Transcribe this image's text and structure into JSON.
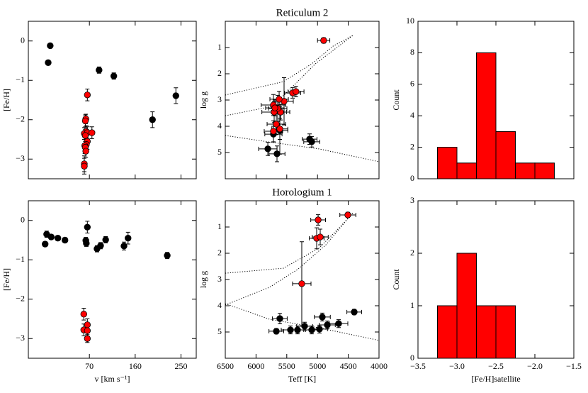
{
  "chart_data": [
    {
      "type": "scatter",
      "ylabel": "[Fe/H]",
      "xlim": [
        -50,
        280
      ],
      "ylim": [
        -3.5,
        0.5
      ],
      "xticks": [
        70,
        160,
        250
      ],
      "show_xticklabels": false,
      "yticks": [
        0,
        {
          "value": -1,
          "label": "−1"
        },
        {
          "value": -2,
          "label": "−2"
        },
        {
          "value": -3,
          "label": "−3"
        }
      ],
      "series": [
        {
          "color": "#000000",
          "x": [
            -11,
            -7,
            89,
            118,
            194,
            240
          ],
          "values": [
            -0.55,
            -0.12,
            -0.74,
            -0.89,
            -2.0,
            -1.39
          ],
          "yerr": [
            0.06,
            0.05,
            0.08,
            0.08,
            0.2,
            0.2
          ]
        },
        {
          "color": "#ff0000",
          "x": [
            66,
            63,
            62,
            64,
            60,
            66,
            75,
            62,
            66,
            64,
            61,
            62,
            63,
            60,
            60
          ],
          "values": [
            -1.37,
            -1.98,
            -2.03,
            -2.3,
            -2.35,
            -2.33,
            -2.33,
            -2.4,
            -2.55,
            -2.63,
            -2.66,
            -2.7,
            -2.8,
            -3.12,
            -3.18
          ],
          "yerr": [
            0.15,
            0.12,
            0.15,
            0.15,
            0.15,
            0.15,
            0.15,
            0.15,
            0.2,
            0.15,
            0.2,
            0.15,
            0.15,
            0.2,
            0.2
          ]
        }
      ]
    },
    {
      "type": "scatter",
      "title": "Reticulum 2",
      "ylabel": "log g",
      "xlim": [
        6500,
        4000
      ],
      "ylim": [
        6,
        0
      ],
      "xticks": [
        6500,
        6000,
        5500,
        5000,
        4500,
        4000
      ],
      "show_xticklabels": false,
      "yticks": [
        1,
        2,
        3,
        4,
        5
      ],
      "curves": [
        {
          "x": [
            6500,
            5555,
            5094,
            4749,
            4426
          ],
          "y": [
            2.81,
            2.3,
            1.62,
            0.95,
            0.54
          ]
        },
        {
          "x": [
            6500,
            5740,
            5440,
            5035,
            4426
          ],
          "y": [
            3.6,
            3.24,
            2.57,
            1.62,
            0.54
          ]
        },
        {
          "x": [
            6500,
            5785,
            4979,
            4000
          ],
          "y": [
            4.35,
            4.6,
            4.86,
            5.35
          ]
        }
      ],
      "series": [
        {
          "color": "#000000",
          "x": [
            5129,
            5094,
            5808,
            5659,
            5717,
            5613
          ],
          "values": [
            4.49,
            4.59,
            4.86,
            5.05,
            4.3,
            4.16
          ],
          "xerr": [
            120,
            130,
            150,
            130,
            140,
            130
          ],
          "yerr": [
            0.2,
            0.2,
            0.25,
            0.3,
            0.3,
            0.9
          ]
        },
        {
          "color": "#ff0000",
          "x": [
            4900,
            5405,
            5350,
            5544,
            5624,
            5717,
            5705,
            5601,
            5648,
            5670,
            5613,
            5717,
            5694
          ],
          "values": [
            0.73,
            2.73,
            2.68,
            3.05,
            2.97,
            3.19,
            3.46,
            3.46,
            3.32,
            3.92,
            4.1,
            4.19,
            3.3
          ],
          "xerr": [
            100,
            130,
            130,
            150,
            150,
            200,
            200,
            150,
            150,
            150,
            130,
            150,
            150
          ],
          "yerr": [
            0.1,
            0.2,
            0.2,
            0.9,
            0.3,
            0.4,
            0.4,
            0.3,
            0.5,
            0.4,
            0.4,
            0.4,
            0.3
          ]
        }
      ]
    },
    {
      "type": "histogram",
      "ylabel": "Count",
      "color": "#ff0000",
      "bins": [
        -3.25,
        -3.0,
        -2.75,
        -2.5,
        -2.25,
        -2.0,
        -1.75
      ],
      "values": [
        2,
        1,
        8,
        3,
        1,
        1
      ],
      "xlim": [
        -3.5,
        -1.5
      ],
      "ylim": [
        0,
        10
      ],
      "show_xticklabels": false,
      "xticks": [
        {
          "value": -3.5,
          "label": "−3.5"
        },
        {
          "value": -3.0,
          "label": "−3.0"
        },
        {
          "value": -2.5,
          "label": "−2.5"
        },
        {
          "value": -2.0,
          "label": "−2.0"
        },
        {
          "value": -1.5,
          "label": "−1.5"
        }
      ],
      "yticks": [
        0,
        2,
        4,
        6,
        8,
        10
      ]
    },
    {
      "type": "scatter",
      "xlabel": "v [km s⁻¹]",
      "ylabel": "[Fe/H]",
      "xlim": [
        -50,
        280
      ],
      "ylim": [
        -3.5,
        0.5
      ],
      "xticks": [
        70,
        160,
        250
      ],
      "show_xticklabels": true,
      "yticks": [
        0,
        {
          "value": -1,
          "label": "−1"
        },
        {
          "value": -2,
          "label": "−2"
        },
        {
          "value": -3,
          "label": "−3"
        }
      ],
      "series": [
        {
          "color": "#000000",
          "x": [
            -17,
            -14,
            -5,
            8,
            22,
            64,
            66,
            63,
            85,
            92,
            102,
            138,
            146,
            223
          ],
          "values": [
            -0.6,
            -0.35,
            -0.42,
            -0.45,
            -0.5,
            -0.58,
            -0.17,
            -0.51,
            -0.72,
            -0.64,
            -0.49,
            -0.65,
            -0.45,
            -0.89
          ],
          "yerr": [
            0.06,
            0.08,
            0.06,
            0.06,
            0.06,
            0.08,
            0.15,
            0.08,
            0.08,
            0.08,
            0.08,
            0.1,
            0.15,
            0.08
          ]
        },
        {
          "color": "#ff0000",
          "x": [
            59,
            66,
            59,
            66,
            66
          ],
          "values": [
            -2.38,
            -2.65,
            -2.78,
            -2.8,
            -3.0
          ],
          "yerr": [
            0.15,
            0.15,
            0.15,
            0.15,
            0.1
          ]
        }
      ]
    },
    {
      "type": "scatter",
      "title": "Horologium 1",
      "xlabel": "Teff [K]",
      "ylabel": "log g",
      "xlim": [
        6500,
        4000
      ],
      "ylim": [
        6,
        0
      ],
      "xticks": [
        6500,
        6000,
        5500,
        5000,
        4500,
        4000
      ],
      "show_xticklabels": true,
      "yticks": [
        1,
        2,
        3,
        4,
        5
      ],
      "curves": [
        {
          "x": [
            6500,
            5555,
            4979,
            4634,
            4426
          ],
          "y": [
            2.76,
            2.57,
            1.81,
            1.0,
            0.46
          ]
        },
        {
          "x": [
            6500,
            5785,
            5325,
            4864,
            4426
          ],
          "y": [
            3.97,
            3.3,
            2.62,
            1.68,
            0.46
          ]
        },
        {
          "x": [
            6500,
            5785,
            4979,
            4000
          ],
          "y": [
            3.92,
            4.51,
            4.84,
            5.32
          ]
        }
      ],
      "series": [
        {
          "color": "#000000",
          "x": [
            4403,
            4922,
            5613,
            5210,
            5094,
            4968,
            4841,
            4657,
            5440,
            5670,
            5325
          ],
          "values": [
            4.24,
            4.43,
            4.49,
            4.78,
            4.92,
            4.89,
            4.73,
            4.68,
            4.92,
            4.97,
            4.92
          ],
          "xerr": [
            120,
            130,
            120,
            130,
            130,
            130,
            130,
            150,
            150,
            120,
            130
          ],
          "yerr": [
            0.1,
            0.15,
            0.2,
            0.15,
            0.15,
            0.15,
            0.15,
            0.15,
            0.15,
            0.1,
            0.15
          ]
        },
        {
          "color": "#ff0000",
          "x": [
            4507,
            4990,
            5014,
            4956,
            5256
          ],
          "values": [
            0.54,
            0.73,
            1.43,
            1.38,
            3.16
          ],
          "xerr": [
            130,
            120,
            120,
            130,
            150
          ],
          "yerr": [
            0.1,
            0.2,
            0.4,
            0.3,
            1.6
          ]
        }
      ]
    },
    {
      "type": "histogram",
      "xlabel": "[Fe/H]satellite",
      "ylabel": "Count",
      "color": "#ff0000",
      "bins": [
        -3.25,
        -3.0,
        -2.75,
        -2.5,
        -2.25
      ],
      "values": [
        1,
        2,
        1,
        1
      ],
      "xlim": [
        -3.5,
        -1.5
      ],
      "ylim": [
        0,
        3
      ],
      "show_xticklabels": true,
      "xticks": [
        {
          "value": -3.5,
          "label": "−3.5"
        },
        {
          "value": -3.0,
          "label": "−3.0"
        },
        {
          "value": -2.5,
          "label": "−2.5"
        },
        {
          "value": -2.0,
          "label": "−2.0"
        },
        {
          "value": -1.5,
          "label": "−1.5"
        }
      ],
      "yticks": [
        0,
        1,
        2,
        3
      ]
    }
  ]
}
